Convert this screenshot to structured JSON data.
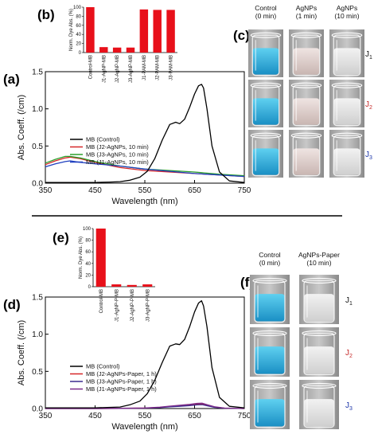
{
  "colors": {
    "control": "#000000",
    "j2": "#d62728",
    "j3": "#2ca02c",
    "j1": "#1f3fbf",
    "j3_paper": "#3a2b8f",
    "j1_paper": "#7a2a8a",
    "bar": "#e8101a",
    "blue_liquid": "#35b7e0",
    "j1_text": "#111111",
    "j2_text": "#c62828",
    "j3_text": "#1a33a8"
  },
  "panels": {
    "a": "(a)",
    "b": "(b)",
    "c": "(c)",
    "d": "(d)",
    "e": "(e)",
    "f": "(f)"
  },
  "photos": {
    "c": {
      "headers": [
        {
          "line1": "Control",
          "line2": "(0 min)"
        },
        {
          "line1": "AgNPs",
          "line2": "(1 min)"
        },
        {
          "line1": "AgNPs",
          "line2": "(10 min)"
        }
      ],
      "rows": [
        {
          "j": "J",
          "sub": "1"
        },
        {
          "j": "J",
          "sub": "2"
        },
        {
          "j": "J",
          "sub": "3"
        }
      ]
    },
    "f": {
      "headers": [
        {
          "line1": "Control",
          "line2": "(0 min)"
        },
        {
          "line1": "AgNPs-Paper",
          "line2": "(10 min)"
        }
      ],
      "rows": [
        {
          "j": "J",
          "sub": "1"
        },
        {
          "j": "J",
          "sub": "2"
        },
        {
          "j": "J",
          "sub": "3"
        }
      ]
    }
  },
  "chart_data": [
    {
      "id": "a",
      "type": "line",
      "xlabel": "Wavelength (nm)",
      "ylabel": "Abs. Coeff. (/cm)",
      "xlim": [
        350,
        750
      ],
      "ylim": [
        0,
        1.5
      ],
      "xticks": [
        350,
        450,
        550,
        650,
        750
      ],
      "yticks": [
        0.0,
        0.5,
        1.0,
        1.5
      ],
      "ytick_labels": [
        "0.0",
        "0.5",
        "1.0",
        "1.5"
      ],
      "legend_position": "center-left",
      "series": [
        {
          "name": "MB (Control)",
          "color_key": "control",
          "x": [
            350,
            400,
            450,
            480,
            500,
            520,
            540,
            555,
            570,
            585,
            600,
            612,
            620,
            630,
            640,
            650,
            658,
            664,
            668,
            675,
            685,
            700,
            720,
            750
          ],
          "y": [
            0.01,
            0.01,
            0.01,
            0.015,
            0.02,
            0.04,
            0.08,
            0.16,
            0.33,
            0.58,
            0.79,
            0.82,
            0.8,
            0.86,
            1.02,
            1.2,
            1.31,
            1.33,
            1.28,
            1.0,
            0.5,
            0.15,
            0.03,
            0.01
          ]
        },
        {
          "name": "MB (J2-AgNPs, 10 min)",
          "color_key": "j2",
          "x": [
            350,
            370,
            390,
            400,
            420,
            450,
            500,
            550,
            600,
            650,
            700,
            750
          ],
          "y": [
            0.25,
            0.3,
            0.34,
            0.35,
            0.33,
            0.28,
            0.21,
            0.17,
            0.15,
            0.13,
            0.11,
            0.09
          ]
        },
        {
          "name": "MB (J3-AgNPs, 10 min)",
          "color_key": "j3",
          "x": [
            350,
            370,
            390,
            400,
            420,
            450,
            500,
            550,
            600,
            650,
            700,
            750
          ],
          "y": [
            0.27,
            0.32,
            0.36,
            0.36,
            0.34,
            0.29,
            0.23,
            0.19,
            0.17,
            0.15,
            0.12,
            0.1
          ]
        },
        {
          "name": "MB (J1-AgNPs, 10 min)",
          "color_key": "j1",
          "x": [
            350,
            370,
            390,
            400,
            420,
            450,
            500,
            550,
            600,
            650,
            700,
            750
          ],
          "y": [
            0.22,
            0.26,
            0.29,
            0.3,
            0.28,
            0.26,
            0.23,
            0.19,
            0.16,
            0.13,
            0.11,
            0.09
          ]
        }
      ]
    },
    {
      "id": "b",
      "type": "bar",
      "ylabel": "Norm. Dye Abs. (%)",
      "ylim": [
        0,
        100
      ],
      "yticks": [
        0,
        20,
        40,
        60,
        80,
        100
      ],
      "categories": [
        "Control-MB",
        "J1-AgNP-MB",
        "J2-AgNP-MB",
        "J3-AgNP-MB",
        "J1-PAM-MB",
        "J2-PAM-MB",
        "J3-PAM-MB"
      ],
      "values": [
        100,
        12,
        11,
        11,
        95,
        94,
        94
      ]
    },
    {
      "id": "d",
      "type": "line",
      "xlabel": "Wavelength (nm)",
      "ylabel": "Abs. Coeff. (/cm)",
      "xlim": [
        350,
        750
      ],
      "ylim": [
        0,
        1.5
      ],
      "xticks": [
        350,
        450,
        550,
        650,
        750
      ],
      "yticks": [
        0.0,
        0.5,
        1.0,
        1.5
      ],
      "ytick_labels": [
        "0.0",
        "0.5",
        "1.0",
        "1.5"
      ],
      "legend_position": "center-left",
      "series": [
        {
          "name": "MB (Control)",
          "color_key": "control",
          "x": [
            350,
            450,
            500,
            520,
            540,
            555,
            570,
            585,
            600,
            612,
            620,
            630,
            640,
            650,
            658,
            664,
            668,
            675,
            685,
            700,
            720,
            750
          ],
          "y": [
            0.01,
            0.01,
            0.02,
            0.05,
            0.1,
            0.2,
            0.38,
            0.62,
            0.84,
            0.87,
            0.86,
            0.93,
            1.1,
            1.3,
            1.42,
            1.45,
            1.38,
            1.1,
            0.55,
            0.15,
            0.03,
            0.01
          ]
        },
        {
          "name": "MB (J2-AgNPs-Paper, 1 h)",
          "color_key": "j2",
          "x": [
            350,
            450,
            500,
            550,
            580,
            600,
            620,
            640,
            655,
            665,
            675,
            690,
            710,
            750
          ],
          "y": [
            0.0,
            0.0,
            0.002,
            0.006,
            0.015,
            0.028,
            0.038,
            0.048,
            0.06,
            0.062,
            0.045,
            0.02,
            0.005,
            0.0
          ]
        },
        {
          "name": "MB (J3-AgNPs-Paper, 1 h)",
          "color_key": "j3_paper",
          "x": [
            350,
            450,
            500,
            550,
            580,
            600,
            620,
            640,
            655,
            665,
            675,
            690,
            710,
            750
          ],
          "y": [
            0.0,
            0.0,
            0.002,
            0.005,
            0.012,
            0.022,
            0.03,
            0.04,
            0.05,
            0.052,
            0.038,
            0.016,
            0.004,
            0.0
          ]
        },
        {
          "name": "MB (J1-AgNPs-Paper, 1 h)",
          "color_key": "j1_paper",
          "x": [
            350,
            450,
            500,
            550,
            580,
            600,
            620,
            640,
            655,
            665,
            675,
            690,
            710,
            750
          ],
          "y": [
            0.0,
            0.0,
            0.003,
            0.008,
            0.018,
            0.032,
            0.044,
            0.056,
            0.07,
            0.072,
            0.052,
            0.024,
            0.006,
            0.0
          ]
        }
      ]
    },
    {
      "id": "e",
      "type": "bar",
      "ylabel": "Norm. Dye Abs. (%)",
      "ylim": [
        0,
        100
      ],
      "yticks": [
        0,
        20,
        40,
        60,
        80,
        100
      ],
      "categories": [
        "Control-MB",
        "J1-AgNP-P-MB",
        "J2-AgNP-P-MB",
        "J3-AgNP-P-MB"
      ],
      "values": [
        100,
        4,
        3,
        4
      ]
    }
  ]
}
